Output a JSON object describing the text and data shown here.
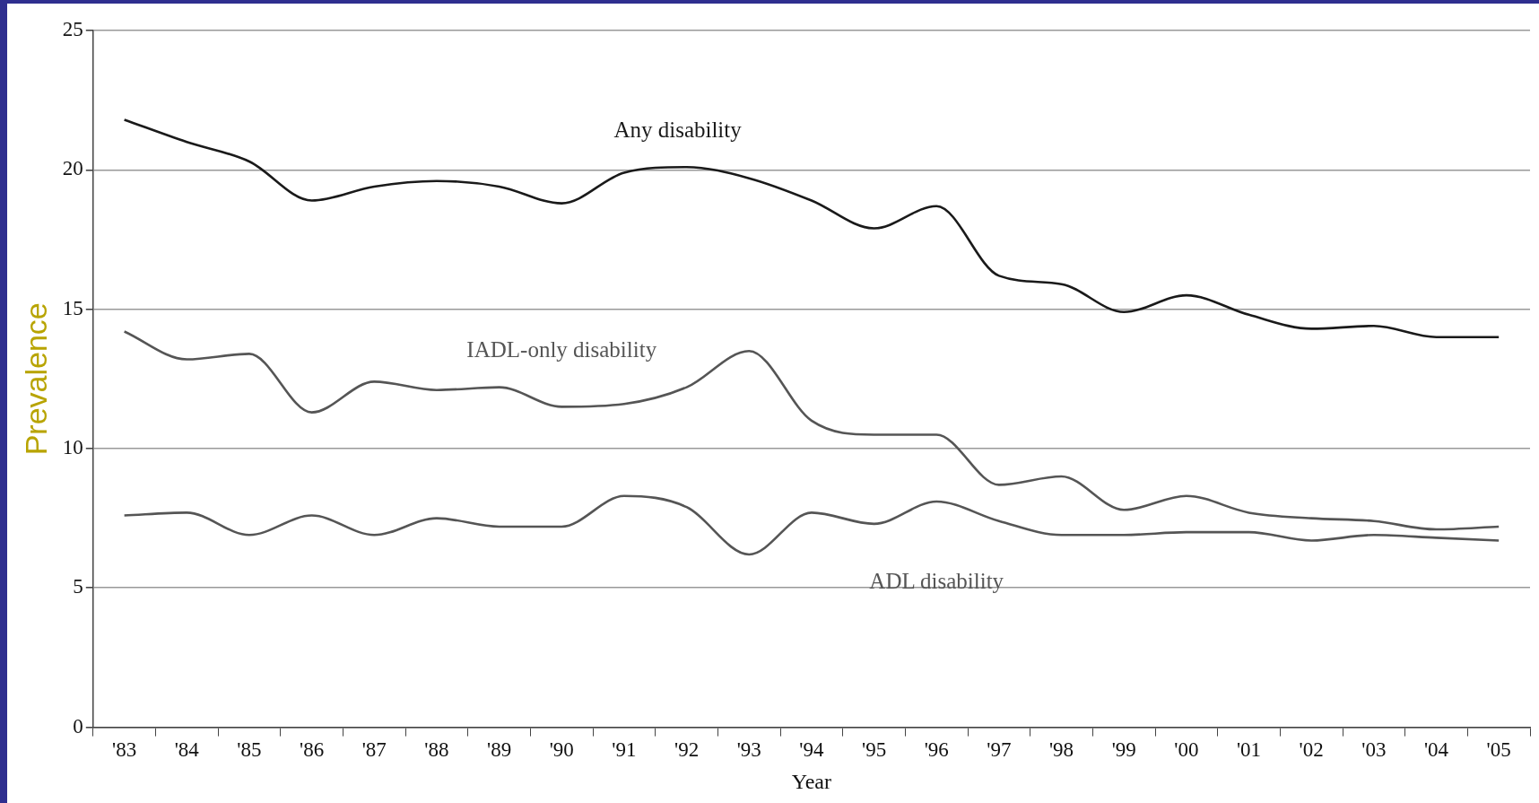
{
  "chart_data": {
    "type": "line",
    "xlabel": "Year",
    "ylabel": "Prevalence",
    "categories": [
      "'83",
      "'84",
      "'85",
      "'86",
      "'87",
      "'88",
      "'89",
      "'90",
      "'91",
      "'92",
      "'93",
      "'94",
      "'95",
      "'96",
      "'97",
      "'98",
      "'99",
      "'00",
      "'01",
      "'02",
      "'03",
      "'04",
      "'05"
    ],
    "series": [
      {
        "name": "Any disability",
        "color": "#1a1a1a",
        "values": [
          21.8,
          21.0,
          20.3,
          18.9,
          19.4,
          19.6,
          19.4,
          18.8,
          19.9,
          20.1,
          19.7,
          18.9,
          17.9,
          18.7,
          16.2,
          15.9,
          14.9,
          15.5,
          14.8,
          14.3,
          14.4,
          14.0,
          14.0
        ]
      },
      {
        "name": "IADL-only disability",
        "color": "#555555",
        "values": [
          14.2,
          13.2,
          13.4,
          11.3,
          12.4,
          12.1,
          12.2,
          11.5,
          11.6,
          12.2,
          13.5,
          11.0,
          10.5,
          10.5,
          8.7,
          9.0,
          7.8,
          8.3,
          7.7,
          7.5,
          7.4,
          7.1,
          7.2
        ]
      },
      {
        "name": "ADL disability",
        "color": "#555555",
        "values": [
          7.6,
          7.7,
          6.9,
          7.6,
          6.9,
          7.5,
          7.2,
          7.2,
          8.3,
          7.9,
          6.2,
          7.7,
          7.3,
          8.1,
          7.4,
          6.9,
          6.9,
          7.0,
          7.0,
          6.7,
          6.9,
          6.8,
          6.7
        ]
      }
    ],
    "ylim": [
      0,
      25
    ],
    "yticks": [
      0,
      5,
      10,
      15,
      20,
      25
    ],
    "grid": "y",
    "legend": false,
    "marker": "none",
    "line_style": "solid"
  }
}
